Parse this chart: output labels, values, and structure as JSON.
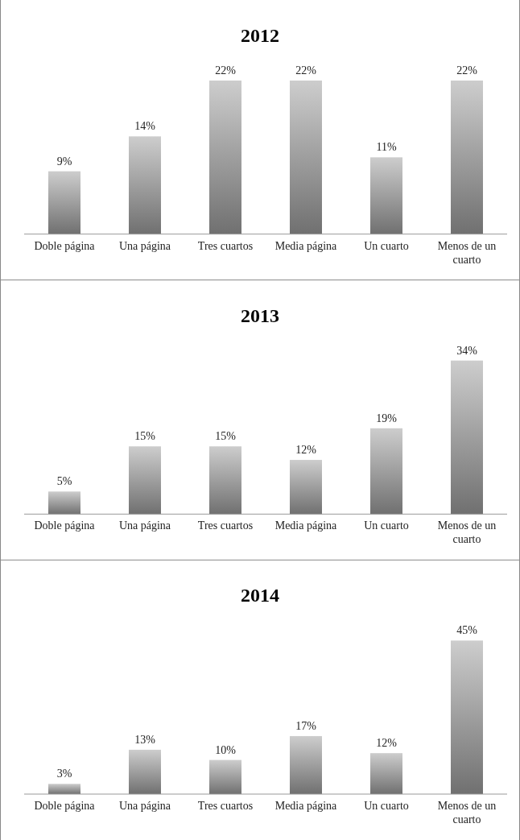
{
  "chart_data": [
    {
      "type": "bar",
      "title": "2012",
      "categories": [
        "Doble página",
        "Una página",
        "Tres cuartos",
        "Media página",
        "Un cuarto",
        "Menos de un cuarto"
      ],
      "values": [
        9,
        14,
        22,
        22,
        11,
        22
      ],
      "value_labels": [
        "9%",
        "14%",
        "22%",
        "22%",
        "11%",
        "22%"
      ],
      "color": "#9a9a9a"
    },
    {
      "type": "bar",
      "title": "2013",
      "categories": [
        "Doble página",
        "Una página",
        "Tres cuartos",
        "Media página",
        "Un cuarto",
        "Menos de un cuarto"
      ],
      "values": [
        5,
        15,
        15,
        12,
        19,
        34
      ],
      "value_labels": [
        "5%",
        "15%",
        "15%",
        "12%",
        "19%",
        "34%"
      ],
      "color": "#9a9a9a"
    },
    {
      "type": "bar",
      "title": "2014",
      "categories": [
        "Doble página",
        "Una página",
        "Tres cuartos",
        "Media página",
        "Un cuarto",
        "Menos de un cuarto"
      ],
      "values": [
        3,
        13,
        10,
        17,
        12,
        45
      ],
      "value_labels": [
        "3%",
        "13%",
        "10%",
        "17%",
        "12%",
        "45%"
      ],
      "color": "#9a9a9a"
    }
  ]
}
